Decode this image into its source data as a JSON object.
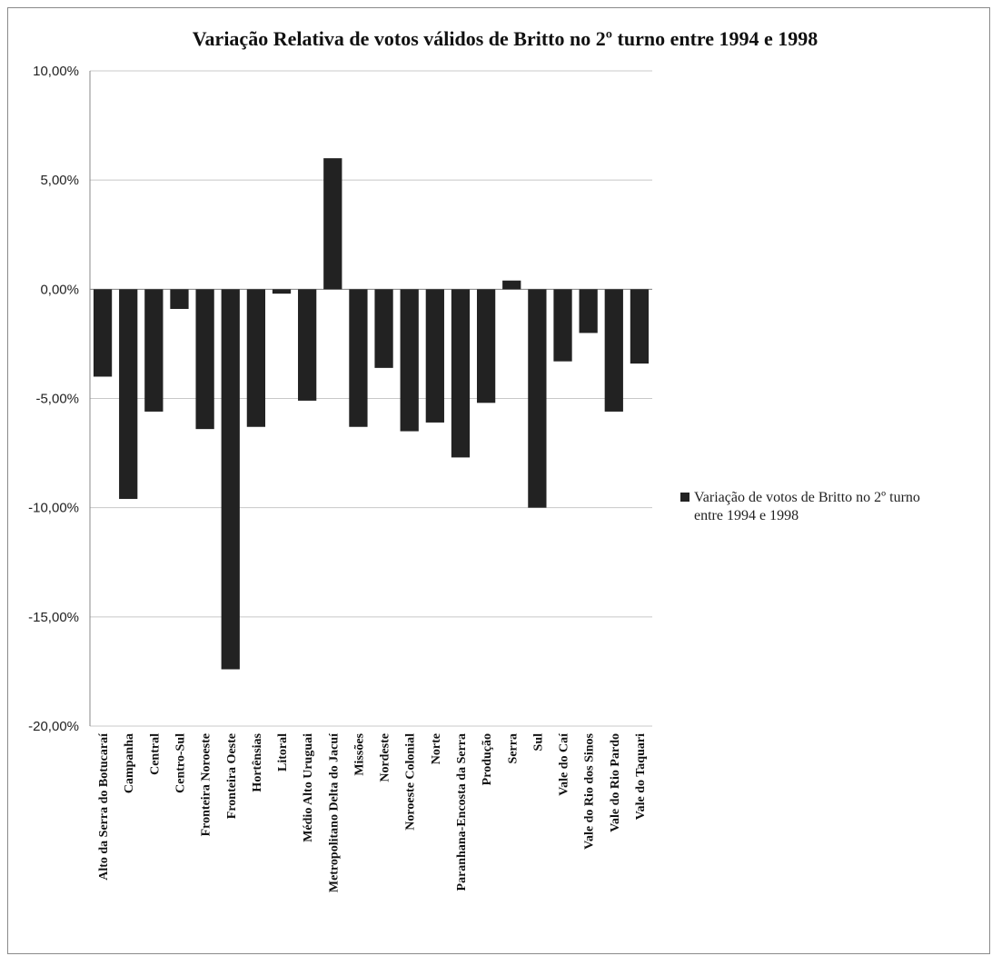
{
  "chart_data": {
    "type": "bar",
    "title": "Variação  Relativa de votos válidos de Britto no 2º turno entre 1994 e 1998",
    "xlabel": "",
    "ylabel": "",
    "ylim": [
      -20,
      10
    ],
    "yticks": [
      10,
      5,
      0,
      -5,
      -10,
      -15,
      -20
    ],
    "ytick_labels": [
      "10,00%",
      "5,00%",
      "0,00%",
      "-5,00%",
      "-10,00%",
      "-15,00%",
      "-20,00%"
    ],
    "grid": true,
    "legend_position": "right",
    "bar_color": "#222222",
    "categories": [
      "Alto da Serra do Botucaraí",
      "Campanha",
      "Central",
      "Centro-Sul",
      "Fronteira Noroeste",
      "Fronteira Oeste",
      "Hortênsias",
      "Litoral",
      "Médio Alto Uruguai",
      "Metropolitano Delta do Jacuí",
      "Missões",
      "Nordeste",
      "Noroeste Colonial",
      "Norte",
      "Paranhana-Encosta da Serra",
      "Produção",
      "Serra",
      "Sul",
      "Vale do Caí",
      "Vale do Rio dos Sinos",
      "Vale do Rio Pardo",
      "Vale do Taquari"
    ],
    "series": [
      {
        "name": "Variação de votos de Britto no 2º turno entre 1994 e 1998",
        "values": [
          -4.0,
          -9.6,
          -5.6,
          -0.9,
          -6.4,
          -17.4,
          -6.3,
          -0.2,
          -5.1,
          6.0,
          -6.3,
          -3.6,
          -6.5,
          -6.1,
          -7.7,
          -5.2,
          0.4,
          -10.0,
          -3.3,
          -2.0,
          -5.6,
          -3.4
        ]
      }
    ],
    "legend_lines": [
      "Variação de votos de Britto no 2º turno",
      "entre 1994 e 1998"
    ]
  }
}
